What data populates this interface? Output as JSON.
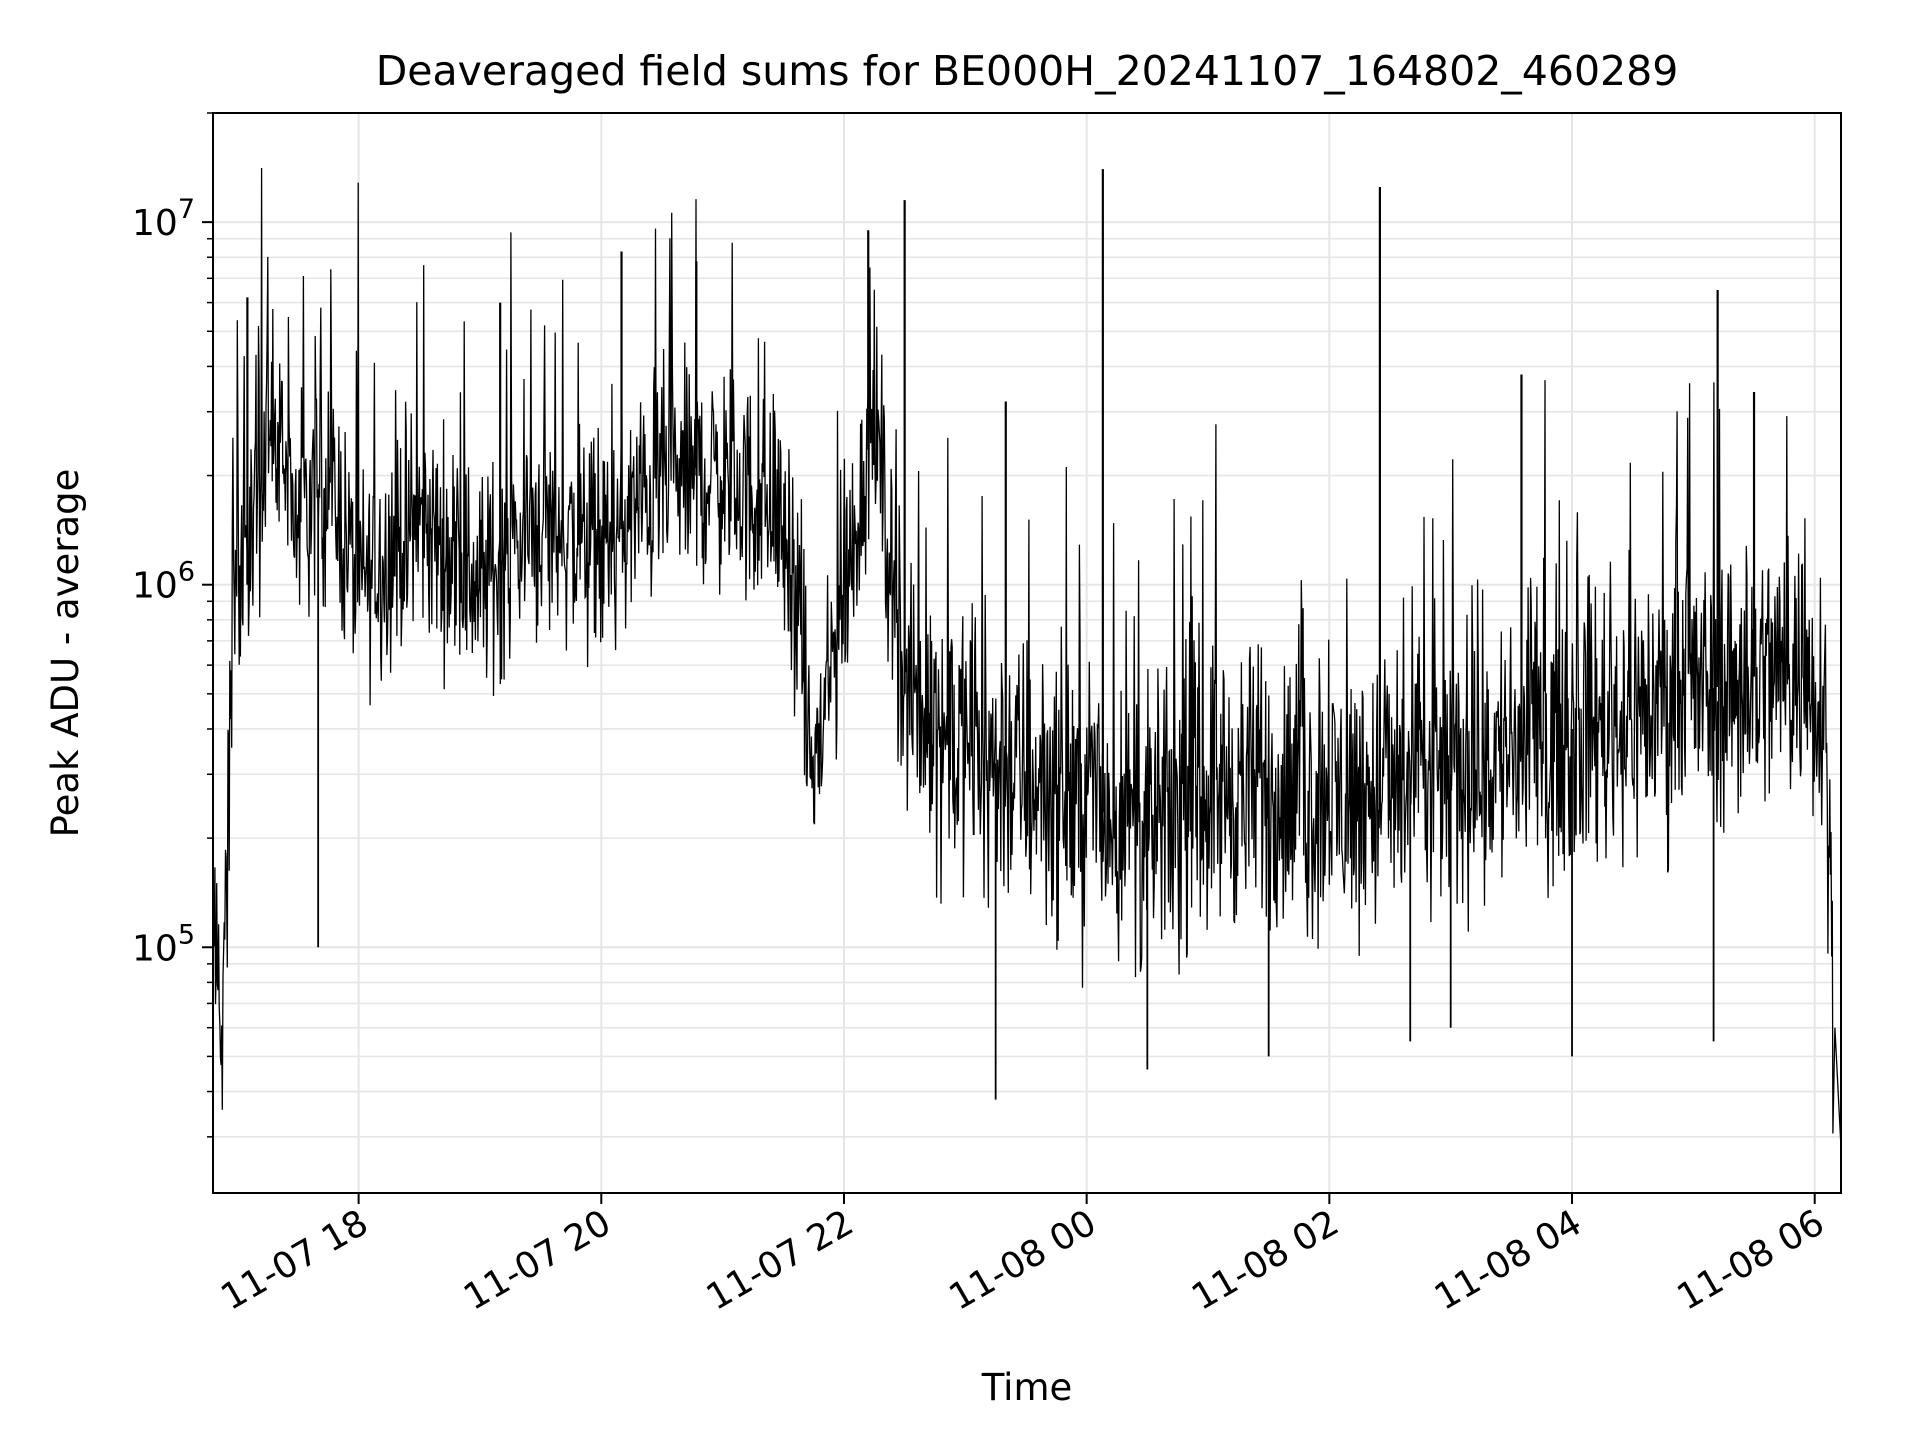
{
  "chart_data": {
    "type": "line",
    "title": "Deaveraged field sums for BE000H_20241107_164802_460289",
    "xlabel": "Time",
    "ylabel": "Peak ADU - average",
    "yscale": "log",
    "xlim": [
      "2024-11-07 16:48",
      "2024-11-08 06:13"
    ],
    "ylim": [
      21000,
      20000000
    ],
    "grid": true,
    "line_color": "#000000",
    "grid_color": "#e6e6e6",
    "x_ticks": [
      {
        "t": "2024-11-07 18:00",
        "label": "11-07 18"
      },
      {
        "t": "2024-11-07 20:00",
        "label": "11-07 20"
      },
      {
        "t": "2024-11-07 22:00",
        "label": "11-07 22"
      },
      {
        "t": "2024-11-08 00:00",
        "label": "11-08 00"
      },
      {
        "t": "2024-11-08 02:00",
        "label": "11-08 02"
      },
      {
        "t": "2024-11-08 04:00",
        "label": "11-08 04"
      },
      {
        "t": "2024-11-08 06:00",
        "label": "11-08 06"
      }
    ],
    "y_ticks": [
      {
        "value": 100000,
        "base": "10",
        "exp": "5"
      },
      {
        "value": 1000000,
        "base": "10",
        "exp": "6"
      },
      {
        "value": 10000000,
        "base": "10",
        "exp": "7"
      }
    ],
    "series": [
      {
        "sampled_points": [
          [
            "2024-11-07 16:48",
            100000
          ],
          [
            "2024-11-07 16:52",
            80000
          ],
          [
            "2024-11-07 16:55",
            130000
          ],
          [
            "2024-11-07 16:58",
            1500000
          ],
          [
            "2024-11-07 17:05",
            1000000
          ],
          [
            "2024-11-07 17:15",
            3000000
          ],
          [
            "2024-11-07 17:30",
            1500000
          ],
          [
            "2024-11-07 17:45",
            2000000
          ],
          [
            "2024-11-07 18:00",
            1000000
          ],
          [
            "2024-11-07 18:30",
            1500000
          ],
          [
            "2024-11-07 19:00",
            1000000
          ],
          [
            "2024-11-07 19:30",
            1500000
          ],
          [
            "2024-11-07 20:00",
            1200000
          ],
          [
            "2024-11-07 20:30",
            2000000
          ],
          [
            "2024-11-07 21:00",
            2000000
          ],
          [
            "2024-11-07 21:30",
            1500000
          ],
          [
            "2024-11-07 21:45",
            300000
          ],
          [
            "2024-11-07 22:00",
            900000
          ],
          [
            "2024-11-07 22:15",
            3000000
          ],
          [
            "2024-11-07 22:30",
            500000
          ],
          [
            "2024-11-07 23:00",
            350000
          ],
          [
            "2024-11-08 00:00",
            250000
          ],
          [
            "2024-11-08 00:30",
            200000
          ],
          [
            "2024-11-08 01:00",
            280000
          ],
          [
            "2024-11-08 02:00",
            250000
          ],
          [
            "2024-11-08 03:00",
            300000
          ],
          [
            "2024-11-08 04:00",
            400000
          ],
          [
            "2024-11-08 05:00",
            500000
          ],
          [
            "2024-11-08 05:50",
            600000
          ],
          [
            "2024-11-08 06:05",
            500000
          ],
          [
            "2024-11-08 06:10",
            60000
          ],
          [
            "2024-11-08 06:13",
            28000
          ]
        ],
        "spikes": [
          [
            "2024-11-07 22:12",
            9500000
          ],
          [
            "2024-11-07 22:30",
            11500000
          ],
          [
            "2024-11-08 00:08",
            14000000
          ],
          [
            "2024-11-08 02:25",
            12500000
          ],
          [
            "2024-11-08 05:12",
            6500000
          ],
          [
            "2024-11-07 17:05",
            6200000
          ],
          [
            "2024-11-07 20:10",
            8300000
          ],
          [
            "2024-11-07 20:47",
            7800000
          ],
          [
            "2024-11-07 19:10",
            6000000
          ],
          [
            "2024-11-07 23:20",
            3200000
          ],
          [
            "2024-11-08 03:35",
            3800000
          ],
          [
            "2024-11-08 05:30",
            3400000
          ]
        ],
        "dips": [
          [
            "2024-11-07 17:40",
            100000
          ],
          [
            "2024-11-07 23:15",
            38000
          ],
          [
            "2024-11-08 00:30",
            46000
          ],
          [
            "2024-11-08 01:30",
            50000
          ],
          [
            "2024-11-08 02:40",
            55000
          ],
          [
            "2024-11-08 03:00",
            60000
          ],
          [
            "2024-11-08 04:00",
            50000
          ],
          [
            "2024-11-08 05:10",
            55000
          ],
          [
            "2024-11-08 06:13",
            28000
          ]
        ]
      }
    ]
  }
}
